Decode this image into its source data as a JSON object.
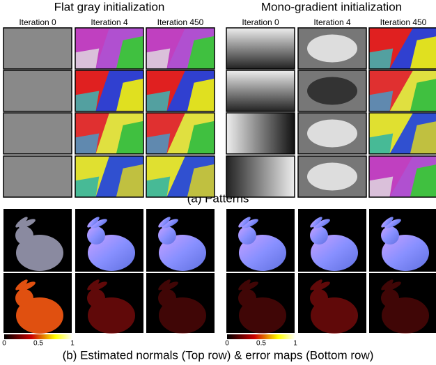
{
  "header": {
    "left_title": "Flat gray initialization",
    "right_title": "Mono-gradient initialization"
  },
  "patterns": {
    "left_columns": [
      "Iteration 0",
      "Iteration 4",
      "Iteration 450"
    ],
    "right_columns": [
      "Iteration 0",
      "Iteration 4",
      "Iteration 450"
    ],
    "caption": "(a) Patterns"
  },
  "normals": {
    "left_colorbar_ticks": [
      0,
      0.5,
      1
    ],
    "right_colorbar_ticks": [
      0,
      0.5,
      1
    ],
    "caption": "(b) Estimated normals (Top row) & error maps (Bottom row)"
  }
}
